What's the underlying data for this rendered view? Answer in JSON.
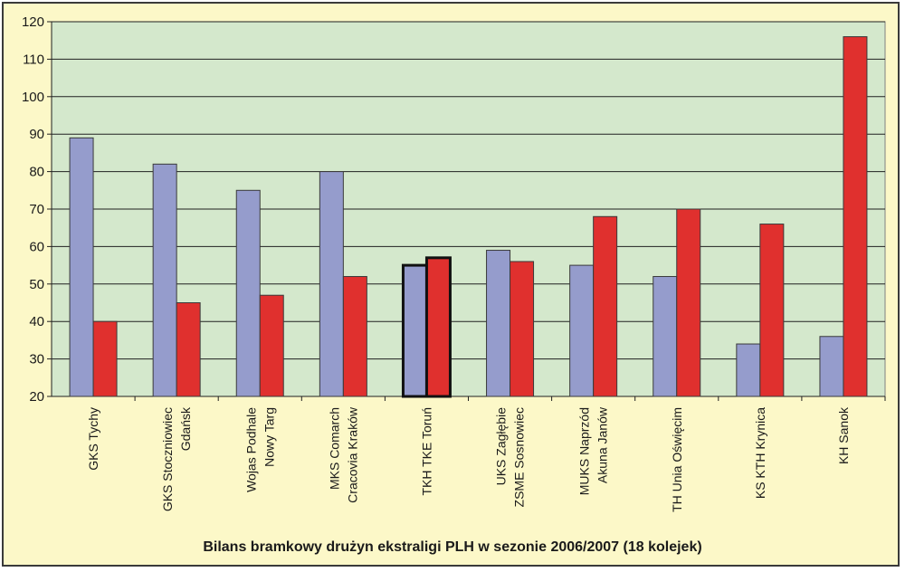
{
  "chart_data": {
    "type": "bar",
    "title": "Bilans bramkowy drużyn ekstraligi PLH w sezonie 2006/2007 (18 kolejek)",
    "xlabel": "",
    "ylabel": "",
    "ylim": [
      20,
      120
    ],
    "yticks": [
      20,
      30,
      40,
      50,
      60,
      70,
      80,
      90,
      100,
      110,
      120
    ],
    "grid": true,
    "legend": "none",
    "categories": [
      [
        "GKS Tychy"
      ],
      [
        "GKS Stoczniowiec",
        "Gdańsk"
      ],
      [
        "Wojas Podhale",
        "Nowy Targ"
      ],
      [
        "MKS Comarch",
        "Cracovia Kraków"
      ],
      [
        "TKH TKE Toruń"
      ],
      [
        "UKS Zagłębie",
        "ZSME Sosnowiec"
      ],
      [
        "MUKS Naprzód",
        "Akuna Janów"
      ],
      [
        "TH Unia Oświęcim"
      ],
      [
        "KS KTH Krynica"
      ],
      [
        "KH Sanok"
      ]
    ],
    "highlighted_category": 4,
    "series": [
      {
        "color": "#959ccc",
        "values": [
          89,
          82,
          75,
          80,
          55,
          59,
          55,
          52,
          34,
          36
        ]
      },
      {
        "color": "#e0302e",
        "values": [
          40,
          45,
          47,
          52,
          57,
          56,
          68,
          70,
          66,
          116
        ]
      }
    ],
    "plot_background": "#d4e8cc"
  }
}
